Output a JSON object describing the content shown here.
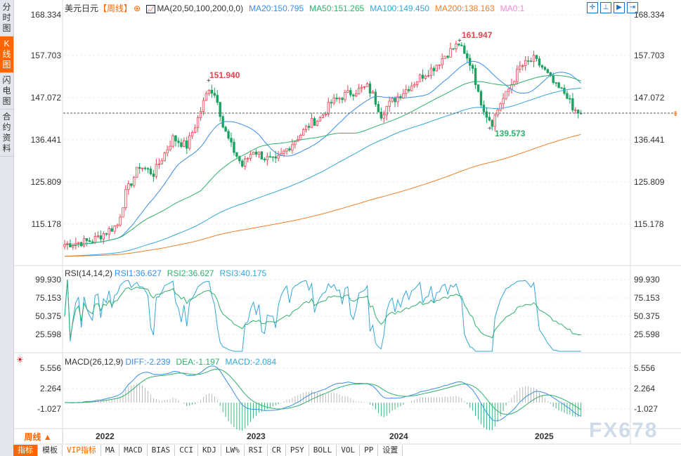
{
  "sidebar": [
    "分时图",
    "K线图",
    "闪电图",
    "合约资料"
  ],
  "header": {
    "symbol": "美元日元",
    "period_tag": "【周线】",
    "ma_label": "MA(20,50,100,200,0,0)",
    "ma20": "MA20:150.795",
    "ma50": "MA50:151.265",
    "ma100": "MA100:149.450",
    "ma200": "MA200:138.163",
    "ma0": "MA0:1"
  },
  "price_axis": [
    "168.334",
    "157.703",
    "147.072",
    "136.441",
    "125.809",
    "115.178"
  ],
  "annotations": {
    "high1": "151.940",
    "high2": "161.947",
    "low1": "139.573"
  },
  "rsi": {
    "label": "RSI(14,14,2)",
    "rsi1": "RSI1:36.627",
    "rsi2": "RSI2:36.627",
    "rsi3": "RSI3:40.175",
    "axis": [
      "99.930",
      "75.153",
      "50.375",
      "25.598"
    ]
  },
  "macd": {
    "label": "MACD(26,12,9)",
    "diff": "DIFF:-2.239",
    "dea": "DEA:-1.197",
    "macd": "MACD:-2.084",
    "axis": [
      "5.556",
      "2.264",
      "-1.027"
    ]
  },
  "years": [
    "2022",
    "2023",
    "2024",
    "2025"
  ],
  "period": "周线 ▲",
  "bottom_tabs": [
    "指标",
    "模板",
    "VIP指标",
    "MA",
    "MACD",
    "BIAS",
    "CCI",
    "KDJ",
    "LW%",
    "RSI",
    "CR",
    "PSY",
    "BOLL",
    "VOL",
    "PP",
    "设置"
  ],
  "watermark": "FX678",
  "colors": {
    "up": "#e8424f",
    "down": "#1aa260",
    "ma20": "#3a8ee6",
    "ma50": "#2fb06b",
    "ma100": "#33a7d8",
    "ma200": "#f07f2a"
  },
  "chart_data": {
    "type": "candlestick",
    "title": "USD/JPY weekly",
    "approx_close_path": [
      [
        0,
        110
      ],
      [
        10,
        111
      ],
      [
        19,
        115
      ],
      [
        22,
        123
      ],
      [
        27,
        130
      ],
      [
        32,
        128
      ],
      [
        39,
        137
      ],
      [
        44,
        135
      ],
      [
        48,
        142
      ],
      [
        52,
        150
      ],
      [
        55,
        147
      ],
      [
        57,
        140
      ],
      [
        60,
        135
      ],
      [
        64,
        130
      ],
      [
        68,
        134
      ],
      [
        72,
        132
      ],
      [
        76,
        131
      ],
      [
        81,
        135
      ],
      [
        85,
        138
      ],
      [
        89,
        141
      ],
      [
        92,
        142
      ],
      [
        96,
        146
      ],
      [
        101,
        148
      ],
      [
        109,
        150
      ],
      [
        111,
        148
      ],
      [
        114,
        143
      ],
      [
        116,
        145
      ],
      [
        119,
        147
      ],
      [
        124,
        150
      ],
      [
        129,
        153
      ],
      [
        133,
        155
      ],
      [
        137,
        158
      ],
      [
        142,
        161
      ],
      [
        144,
        158
      ],
      [
        147,
        155
      ],
      [
        149,
        148
      ],
      [
        152,
        143
      ],
      [
        154,
        141
      ],
      [
        157,
        146
      ],
      [
        159,
        148
      ],
      [
        164,
        155
      ],
      [
        169,
        157
      ],
      [
        172,
        155
      ],
      [
        177,
        150
      ],
      [
        181,
        148
      ],
      [
        183,
        144
      ],
      [
        186,
        143.4
      ]
    ],
    "last": 143.36
  }
}
